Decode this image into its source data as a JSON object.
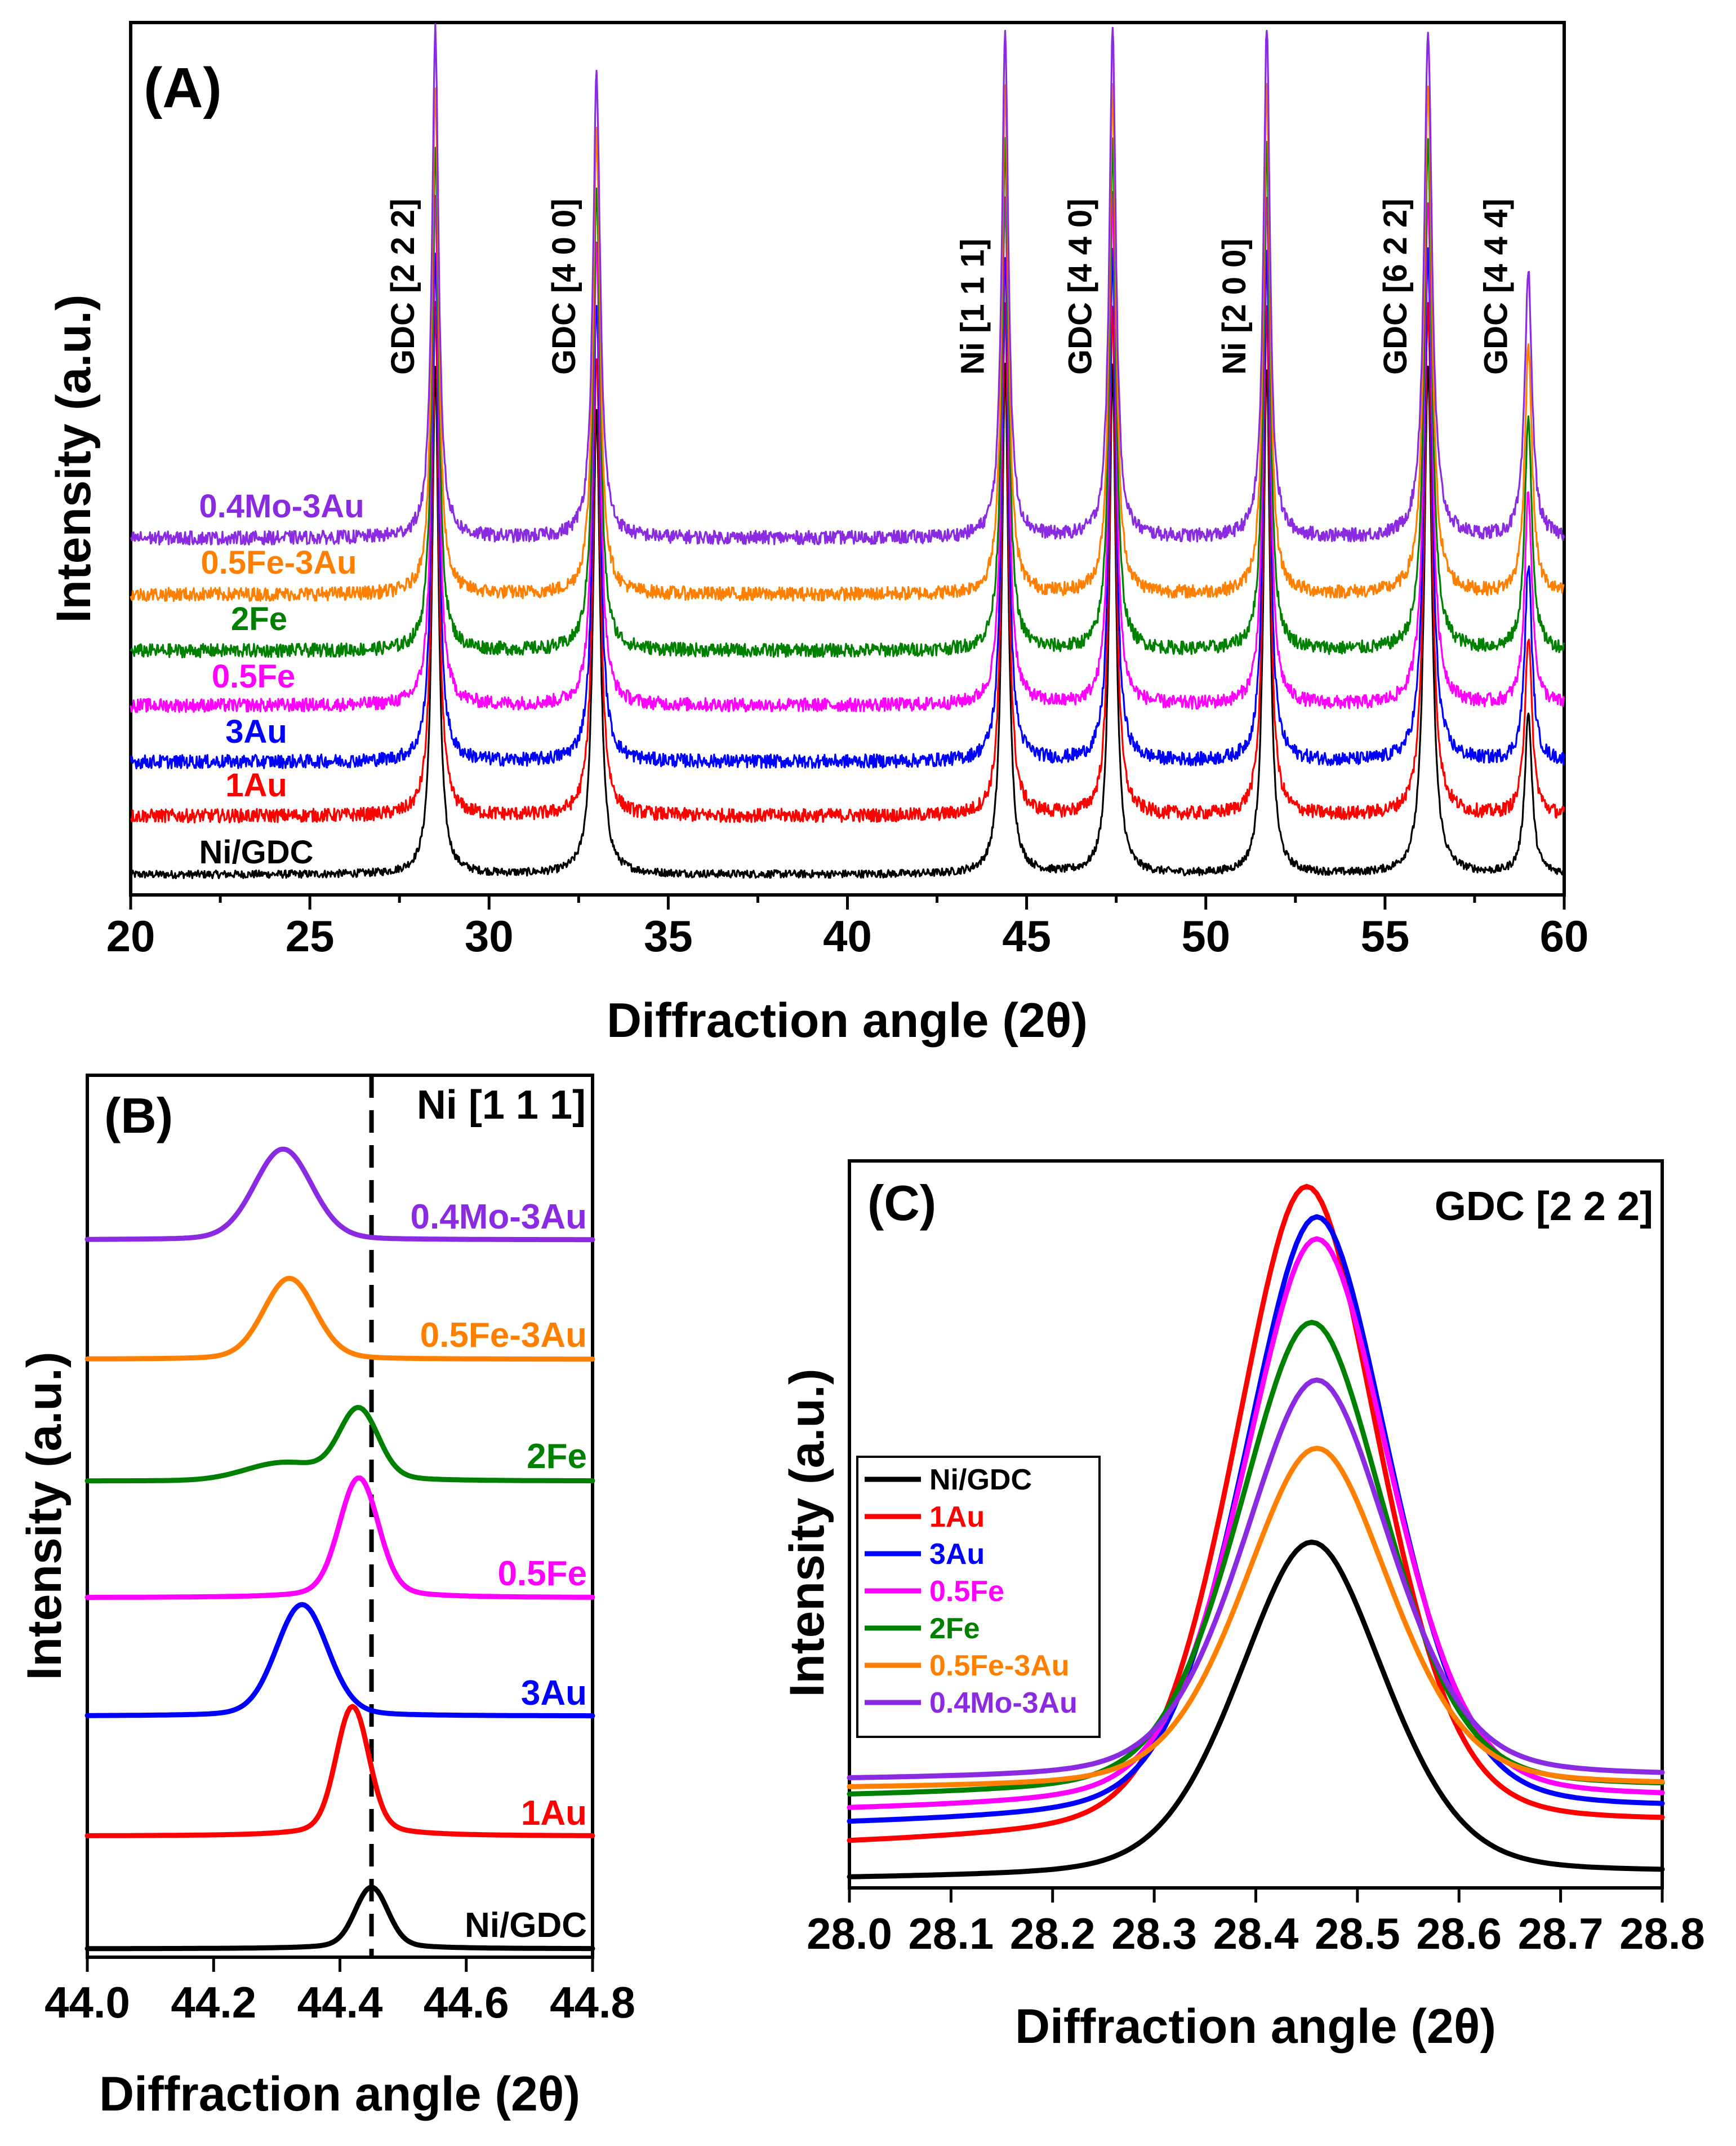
{
  "colors": {
    "Ni/GDC": "#000000",
    "1Au": "#ff0000",
    "3Au": "#0000ff",
    "0.5Fe": "#ff00ff",
    "2Fe": "#008000",
    "0.5Fe-3Au": "#ff8000",
    "0.4Mo-3Au": "#8a2be2"
  },
  "panels": {
    "A": {
      "panel_label": "(A)",
      "xlabel": "Diffraction angle (2θ)",
      "ylabel": "Intensity (a.u.)",
      "x_ticks": [
        "20",
        "25",
        "30",
        "35",
        "40",
        "45",
        "50",
        "55",
        "60"
      ],
      "peak_labels": [
        {
          "text": "GDC [2 2 2]",
          "x": 28.5
        },
        {
          "text": "GDC [4 0 0]",
          "x": 33.0
        },
        {
          "text": "Ni [1 1 1]",
          "x": 44.4
        },
        {
          "text": "GDC [4 4 0]",
          "x": 47.4
        },
        {
          "text": "Ni [2 0 0]",
          "x": 51.7
        },
        {
          "text": "GDC [6 2 2]",
          "x": 56.2
        },
        {
          "text": "GDC [4 4 4]",
          "x": 59.0
        }
      ],
      "series_labels": [
        "0.4Mo-3Au",
        "0.5Fe-3Au",
        "2Fe",
        "0.5Fe",
        "3Au",
        "1Au",
        "Ni/GDC"
      ]
    },
    "B": {
      "panel_label": "(B)",
      "xlabel": "Diffraction angle (2θ)",
      "ylabel": "Intensity (a.u.)",
      "x_ticks": [
        "44.0",
        "44.2",
        "44.4",
        "44.6",
        "44.8"
      ],
      "ref_label": "Ni [1 1 1]",
      "series_labels": [
        "0.4Mo-3Au",
        "0.5Fe-3Au",
        "2Fe",
        "0.5Fe",
        "3Au",
        "1Au",
        "Ni/GDC"
      ]
    },
    "C": {
      "panel_label": "(C)",
      "xlabel": "Diffraction angle (2θ)",
      "ylabel": "Intensity (a.u.)",
      "x_ticks": [
        "28.0",
        "28.1",
        "28.2",
        "28.3",
        "28.4",
        "28.5",
        "28.6",
        "28.7",
        "28.8"
      ],
      "title": "GDC [2 2 2]",
      "legend": [
        "Ni/GDC",
        "1Au",
        "3Au",
        "0.5Fe",
        "2Fe",
        "0.5Fe-3Au",
        "0.4Mo-3Au"
      ]
    }
  },
  "chart_data": [
    {
      "type": "line",
      "panel": "A",
      "xlabel": "Diffraction angle (2θ)",
      "ylabel": "Intensity (a.u.)",
      "xlim": [
        20,
        60
      ],
      "y_ticks_shown": false,
      "grid": false,
      "peaks": [
        28.5,
        33.0,
        44.4,
        47.4,
        51.7,
        56.2,
        59.0
      ],
      "series": [
        {
          "name": "Ni/GDC",
          "offset": 0
        },
        {
          "name": "1Au",
          "offset": 1
        },
        {
          "name": "3Au",
          "offset": 2
        },
        {
          "name": "0.5Fe",
          "offset": 3
        },
        {
          "name": "2Fe",
          "offset": 4
        },
        {
          "name": "0.5Fe-3Au",
          "offset": 5
        },
        {
          "name": "0.4Mo-3Au",
          "offset": 6
        }
      ]
    },
    {
      "type": "line",
      "panel": "B",
      "xlabel": "Diffraction angle (2θ)",
      "ylabel": "Intensity (a.u.)",
      "xlim": [
        44.0,
        44.8
      ],
      "reference_line_x": 44.45,
      "series": [
        {
          "name": "Ni/GDC",
          "peak_x": 44.45
        },
        {
          "name": "1Au",
          "peak_x": 44.42
        },
        {
          "name": "3Au",
          "peak_x": 44.34
        },
        {
          "name": "0.5Fe",
          "peak_x": 44.43
        },
        {
          "name": "2Fe",
          "peak_x": 44.43
        },
        {
          "name": "0.5Fe-3Au",
          "peak_x": 44.32
        },
        {
          "name": "0.4Mo-3Au",
          "peak_x": 44.31
        }
      ]
    },
    {
      "type": "line",
      "panel": "C",
      "xlabel": "Diffraction angle (2θ)",
      "ylabel": "Intensity (a.u.)",
      "xlim": [
        28.0,
        28.8
      ],
      "legend_position": "left",
      "series": [
        {
          "name": "Ni/GDC",
          "peak_x": 28.455,
          "peak_rel": 0.49
        },
        {
          "name": "1Au",
          "peak_x": 28.45,
          "peak_rel": 1.0
        },
        {
          "name": "3Au",
          "peak_x": 28.46,
          "peak_rel": 0.96
        },
        {
          "name": "0.5Fe",
          "peak_x": 28.46,
          "peak_rel": 0.93
        },
        {
          "name": "2Fe",
          "peak_x": 28.455,
          "peak_rel": 0.81
        },
        {
          "name": "0.5Fe-3Au",
          "peak_x": 28.46,
          "peak_rel": 0.63
        },
        {
          "name": "0.4Mo-3Au",
          "peak_x": 28.46,
          "peak_rel": 0.73
        }
      ]
    }
  ]
}
